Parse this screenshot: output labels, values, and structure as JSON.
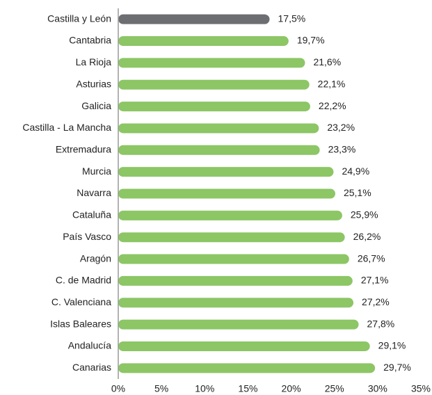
{
  "chart_data": {
    "type": "barh",
    "categories": [
      "Castilla y León",
      "Cantabria",
      "La Rioja",
      "Asturias",
      "Galicia",
      "Castilla - La Mancha",
      "Extremadura",
      "Murcia",
      "Navarra",
      "Cataluña",
      "País Vasco",
      "Aragón",
      "C. de Madrid",
      "C. Valenciana",
      "Islas Baleares",
      "Andalucía",
      "Canarias"
    ],
    "values": [
      17.5,
      19.7,
      21.6,
      22.1,
      22.2,
      23.2,
      23.3,
      24.9,
      25.1,
      25.9,
      26.2,
      26.7,
      27.1,
      27.2,
      27.8,
      29.1,
      29.7
    ],
    "value_labels": [
      "17,5%",
      "19,7%",
      "21,6%",
      "22,1%",
      "22,2%",
      "23,2%",
      "23,3%",
      "24,9%",
      "25,1%",
      "25,9%",
      "26,2%",
      "26,7%",
      "27,1%",
      "27,2%",
      "27,8%",
      "29,1%",
      "29,7%"
    ],
    "colors": [
      "#6d6e71",
      "#8cc665",
      "#8cc665",
      "#8cc665",
      "#8cc665",
      "#8cc665",
      "#8cc665",
      "#8cc665",
      "#8cc665",
      "#8cc665",
      "#8cc665",
      "#8cc665",
      "#8cc665",
      "#8cc665",
      "#8cc665",
      "#8cc665",
      "#8cc665"
    ],
    "xlim": [
      0,
      35
    ],
    "xticks": [
      {
        "value": 0,
        "label": "0%"
      },
      {
        "value": 5,
        "label": "5%"
      },
      {
        "value": 10,
        "label": "10%"
      },
      {
        "value": 15,
        "label": "15%"
      },
      {
        "value": 20,
        "label": "20%"
      },
      {
        "value": 25,
        "label": "25%"
      },
      {
        "value": 30,
        "label": "30%"
      },
      {
        "value": 35,
        "label": "35%"
      }
    ],
    "grid": false
  }
}
